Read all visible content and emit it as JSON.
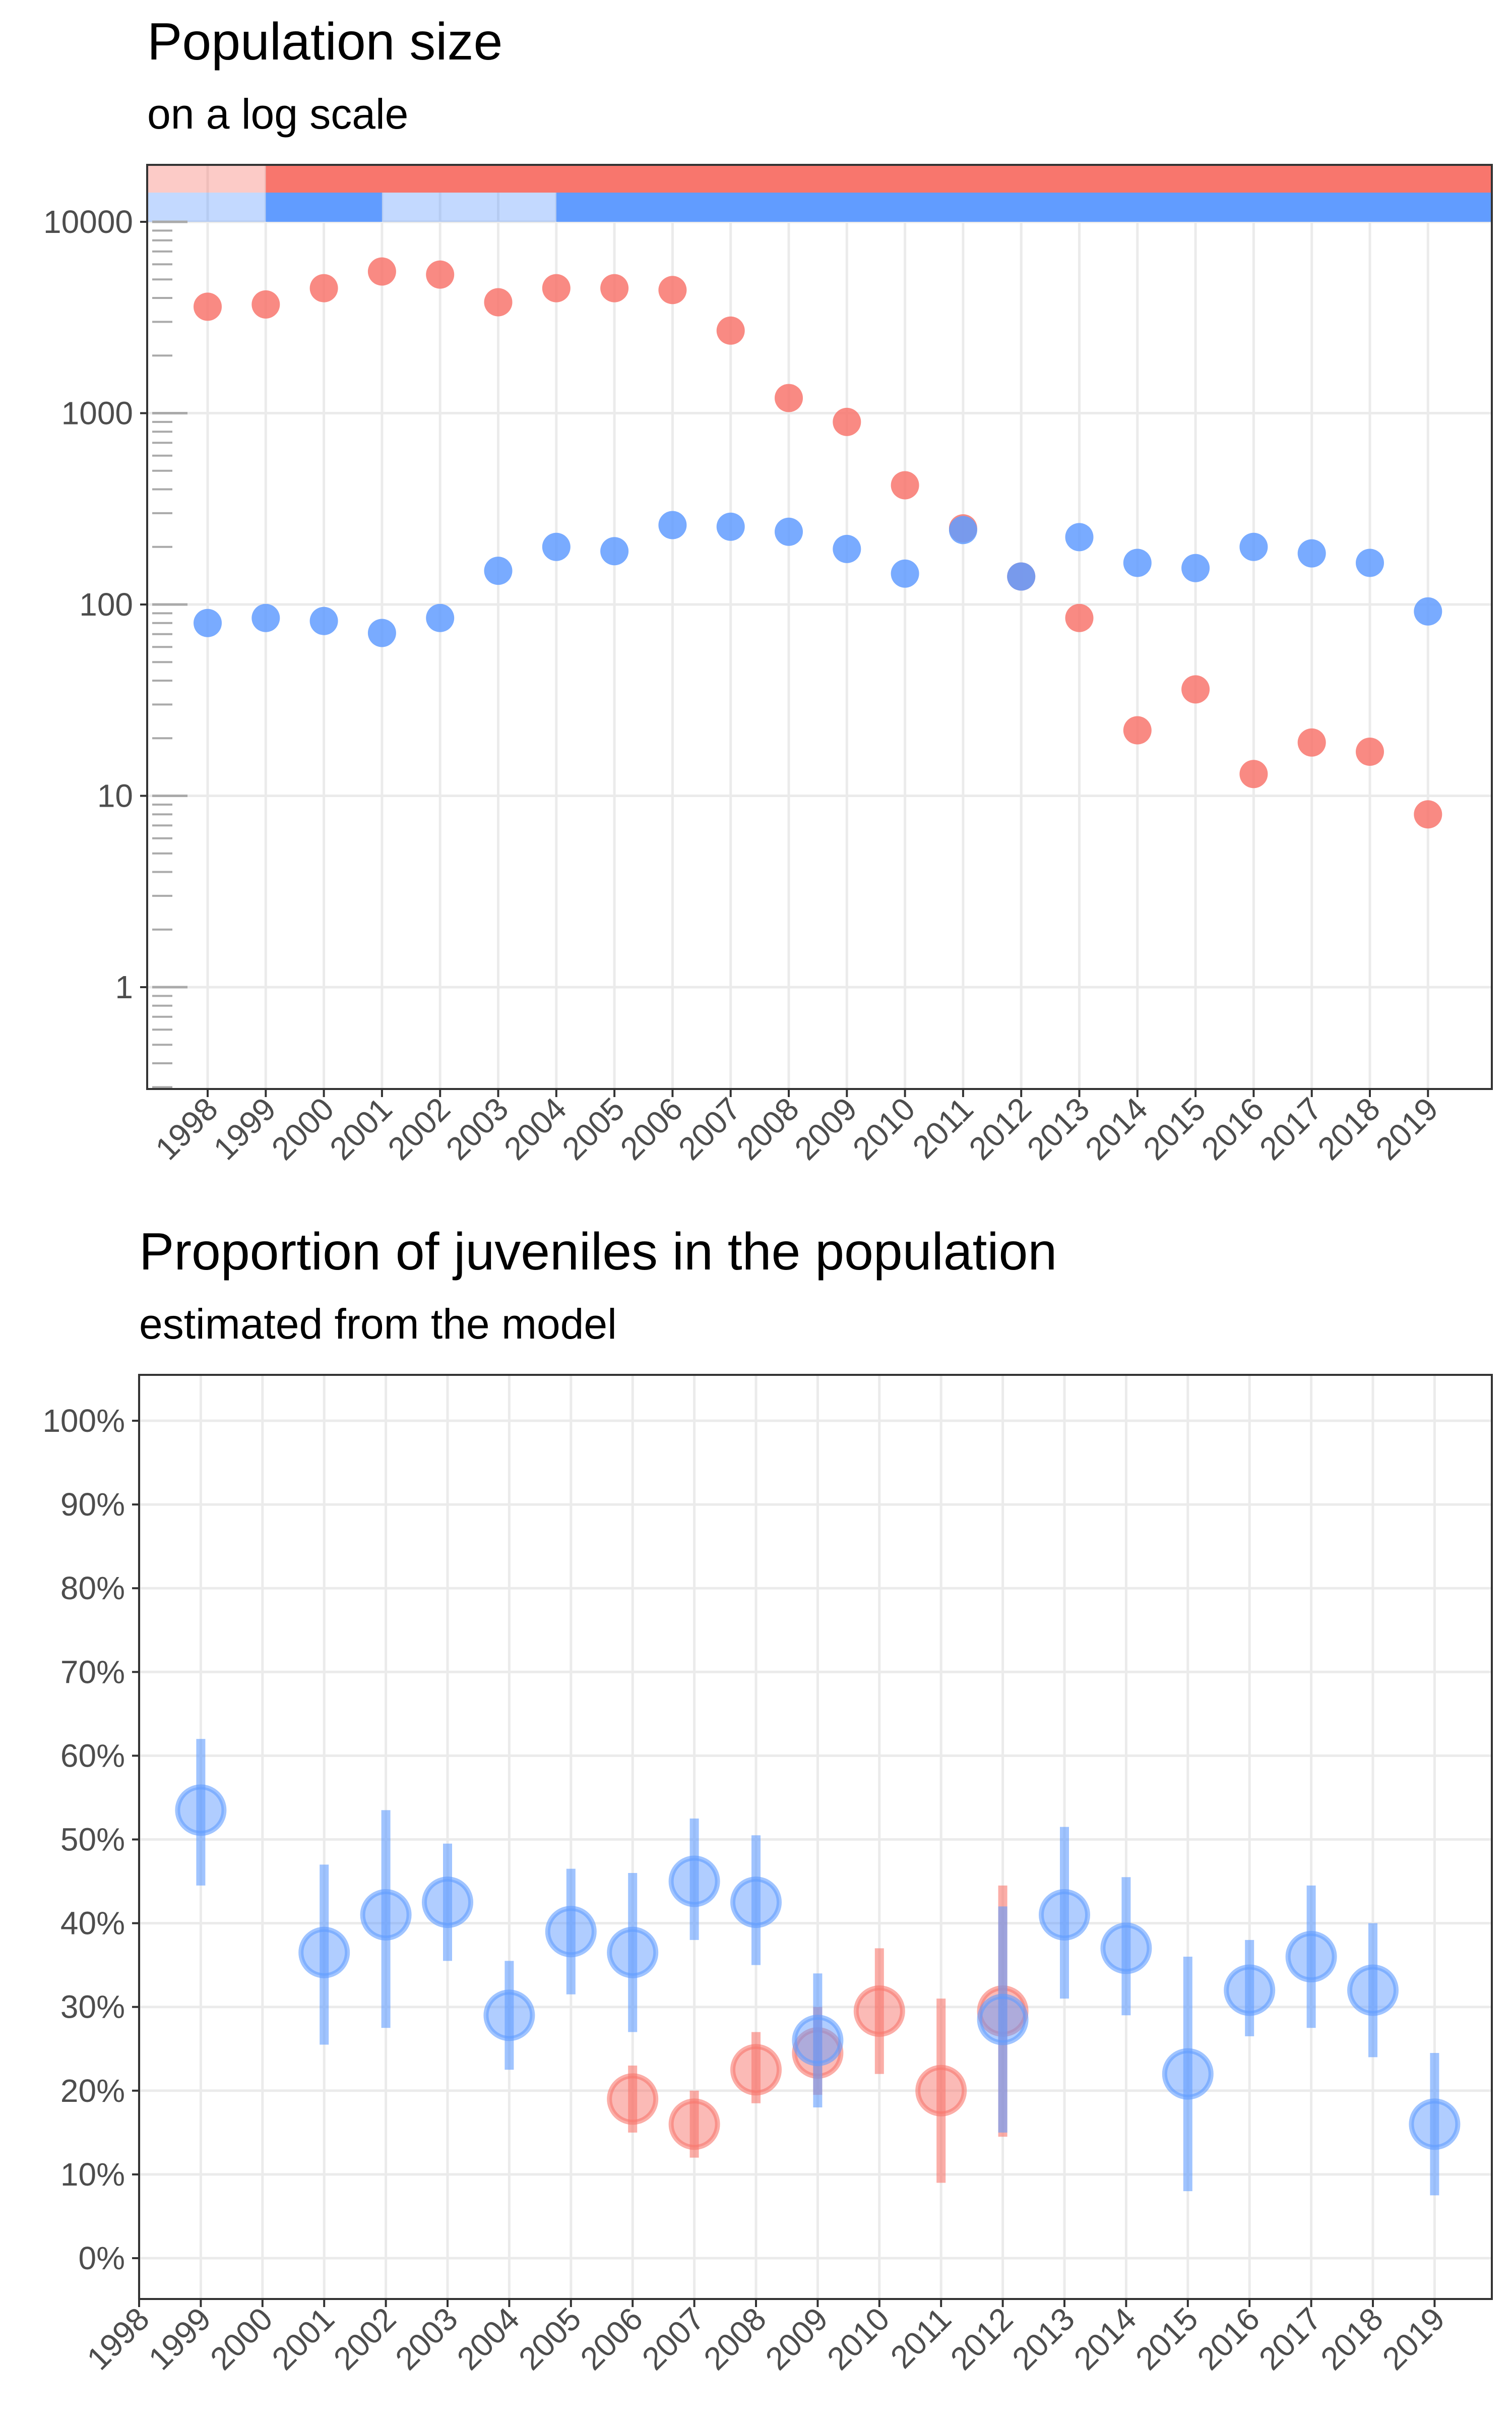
{
  "figure": {
    "colors": {
      "red": "#F8766D",
      "blue": "#619CFF",
      "grid": "#EBEBEB",
      "axis": "#333333",
      "tick_text": "#4D4D4D"
    }
  },
  "chart_data": [
    {
      "type": "scatter",
      "title": "Population size",
      "subtitle": "on a log scale",
      "xlabel": "",
      "ylabel": "",
      "y_scale": "log10",
      "ylim": [
        0.3,
        20000
      ],
      "y_ticks": [
        1,
        10,
        100,
        1000,
        10000
      ],
      "y_tick_labels": [
        "1",
        "10",
        "100",
        "1000",
        "10000"
      ],
      "grid": true,
      "categories": [
        "1998",
        "1999",
        "2000",
        "2001",
        "2002",
        "2003",
        "2004",
        "2005",
        "2006",
        "2007",
        "2008",
        "2009",
        "2010",
        "2011",
        "2012",
        "2013",
        "2014",
        "2015",
        "2016",
        "2017",
        "2018",
        "2019"
      ],
      "series": [
        {
          "color": "#F8766D",
          "values": [
            3600,
            3700,
            4500,
            5500,
            5300,
            3800,
            4500,
            4500,
            4400,
            2700,
            1200,
            900,
            420,
            250,
            140,
            85,
            22,
            36,
            13,
            19,
            17,
            8
          ]
        },
        {
          "color": "#619CFF",
          "values": [
            80,
            85,
            82,
            71,
            85,
            150,
            200,
            190,
            260,
            255,
            240,
            195,
            145,
            245,
            140,
            225,
            165,
            155,
            200,
            185,
            165,
            92
          ]
        }
      ],
      "top_bars": [
        {
          "color": "#F8766D",
          "segments": [
            {
              "from": "1998",
              "to": "1999",
              "style": "light"
            },
            {
              "from": "1999",
              "to": "end",
              "style": "solid"
            }
          ]
        },
        {
          "color": "#619CFF",
          "segments": [
            {
              "from": "1998",
              "to": "1999",
              "style": "light"
            },
            {
              "from": "1999",
              "to": "2001",
              "style": "solid"
            },
            {
              "from": "2001",
              "to": "2004",
              "style": "light"
            },
            {
              "from": "2004",
              "to": "end",
              "style": "solid"
            }
          ]
        }
      ]
    },
    {
      "type": "scatter",
      "title": "Proportion of juveniles in the population",
      "subtitle": "estimated from the model",
      "xlabel": "",
      "ylabel": "",
      "ylim": [
        0,
        100
      ],
      "y_ticks": [
        0,
        10,
        20,
        30,
        40,
        50,
        60,
        70,
        80,
        90,
        100
      ],
      "y_tick_labels": [
        "0%",
        "10%",
        "20%",
        "30%",
        "40%",
        "50%",
        "60%",
        "70%",
        "80%",
        "90%",
        "100%"
      ],
      "grid": true,
      "categories": [
        "1998",
        "1999",
        "2000",
        "2001",
        "2002",
        "2003",
        "2004",
        "2005",
        "2006",
        "2007",
        "2008",
        "2009",
        "2010",
        "2011",
        "2012",
        "2013",
        "2014",
        "2015",
        "2016",
        "2017",
        "2018",
        "2019"
      ],
      "series": [
        {
          "color": "#F8766D",
          "points": [
            {
              "x": "2006",
              "y": 19,
              "low": 15,
              "high": 23
            },
            {
              "x": "2007",
              "y": 16,
              "low": 12,
              "high": 20
            },
            {
              "x": "2008",
              "y": 22.5,
              "low": 18.5,
              "high": 27
            },
            {
              "x": "2009",
              "y": 24.5,
              "low": 19.5,
              "high": 30
            },
            {
              "x": "2010",
              "y": 29.5,
              "low": 22,
              "high": 37
            },
            {
              "x": "2011",
              "y": 20,
              "low": 9,
              "high": 31
            },
            {
              "x": "2012",
              "y": 29.5,
              "low": 14.5,
              "high": 44.5
            }
          ]
        },
        {
          "color": "#619CFF",
          "points": [
            {
              "x": "1999",
              "y": 53.5,
              "low": 44.5,
              "high": 62
            },
            {
              "x": "2001",
              "y": 36.5,
              "low": 25.5,
              "high": 47
            },
            {
              "x": "2002",
              "y": 41,
              "low": 27.5,
              "high": 53.5
            },
            {
              "x": "2003",
              "y": 42.5,
              "low": 35.5,
              "high": 49.5
            },
            {
              "x": "2004",
              "y": 29,
              "low": 22.5,
              "high": 35.5
            },
            {
              "x": "2005",
              "y": 39,
              "low": 31.5,
              "high": 46.5
            },
            {
              "x": "2006",
              "y": 36.5,
              "low": 27,
              "high": 46
            },
            {
              "x": "2007",
              "y": 45,
              "low": 38,
              "high": 52.5
            },
            {
              "x": "2008",
              "y": 42.5,
              "low": 35,
              "high": 50.5
            },
            {
              "x": "2009",
              "y": 26,
              "low": 18,
              "high": 34
            },
            {
              "x": "2012",
              "y": 28.5,
              "low": 15,
              "high": 42
            },
            {
              "x": "2013",
              "y": 41,
              "low": 31,
              "high": 51.5
            },
            {
              "x": "2014",
              "y": 37,
              "low": 29,
              "high": 45.5
            },
            {
              "x": "2015",
              "y": 22,
              "low": 8,
              "high": 36
            },
            {
              "x": "2016",
              "y": 32,
              "low": 26.5,
              "high": 38
            },
            {
              "x": "2017",
              "y": 36,
              "low": 27.5,
              "high": 44.5
            },
            {
              "x": "2018",
              "y": 32,
              "low": 24,
              "high": 40
            },
            {
              "x": "2019",
              "y": 16,
              "low": 7.5,
              "high": 24.5
            }
          ]
        }
      ]
    }
  ]
}
